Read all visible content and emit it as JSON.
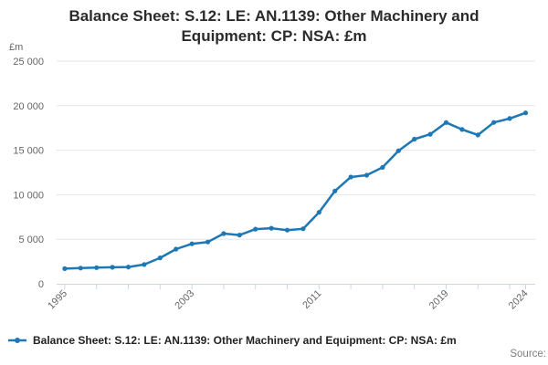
{
  "title": "Balance Sheet: S.12: LE: AN.1139: Other Machinery and Equipment: CP: NSA: £m",
  "y_axis": {
    "unit_label": "£m",
    "tick_values": [
      0,
      5000,
      10000,
      15000,
      20000,
      25000
    ],
    "tick_labels": [
      "0",
      "5 000",
      "10 000",
      "15 000",
      "20 000",
      "25 000"
    ]
  },
  "x_axis": {
    "tick_years": [
      1995,
      1997,
      1999,
      2001,
      2003,
      2005,
      2007,
      2009,
      2011,
      2013,
      2015,
      2017,
      2019,
      2021,
      2023,
      2024
    ],
    "labeled_years": [
      "1995",
      "2003",
      "2011",
      "2019",
      "2024"
    ]
  },
  "legend": {
    "label": "Balance Sheet: S.12: LE: AN.1139: Other Machinery and Equipment: CP: NSA: £m"
  },
  "footer": {
    "source_label": "Source:"
  },
  "colors": {
    "series": "#1d78b5",
    "gridline": "#e6e6e6",
    "axis_line": "#ccd6eb",
    "axis_label": "#666666",
    "title": "#2b2b2b",
    "legend_text": "#222222",
    "source_text": "#808080"
  },
  "chart_data": {
    "type": "line",
    "title": "Balance Sheet: S.12: LE: AN.1139: Other Machinery and Equipment: CP: NSA: £m",
    "ylabel": "£m",
    "xlabel": "",
    "ylim": [
      0,
      25000
    ],
    "x_range_years": [
      1995,
      2024
    ],
    "grid": true,
    "legend_position": "bottom",
    "x": [
      1995,
      1996,
      1997,
      1998,
      1999,
      2000,
      2001,
      2002,
      2003,
      2004,
      2005,
      2006,
      2007,
      2008,
      2009,
      2010,
      2011,
      2012,
      2013,
      2014,
      2015,
      2016,
      2017,
      2018,
      2019,
      2020,
      2021,
      2022,
      2023,
      2024
    ],
    "values": [
      1700,
      1760,
      1810,
      1850,
      1890,
      2160,
      2910,
      3890,
      4490,
      4690,
      5640,
      5470,
      6140,
      6240,
      6020,
      6180,
      8020,
      10420,
      11990,
      12190,
      13070,
      14940,
      16240,
      16790,
      18100,
      17330,
      16710,
      18110,
      18560,
      19190
    ]
  }
}
